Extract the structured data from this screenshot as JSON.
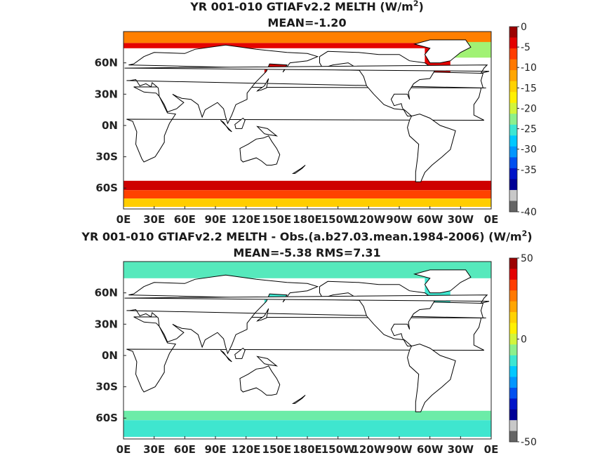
{
  "chart_data": [
    {
      "type": "heatmap",
      "title_prefix": "YR 001-010 GTIAFv2.2  MELTH (W/m",
      "title_exp": "2",
      "title_suffix": ")",
      "subtitle": "MEAN=-1.20",
      "xticks": [
        "0E",
        "30E",
        "60E",
        "90E",
        "120E",
        "150E",
        "180E",
        "150W",
        "120W",
        "90W",
        "60W",
        "30W",
        "0E"
      ],
      "yticks": [
        "60N",
        "30N",
        "0N",
        "30S",
        "60S"
      ],
      "ytick_lat": [
        60,
        30,
        0,
        -30,
        -60
      ],
      "lat_range": [
        -80,
        90
      ],
      "lon_range": [
        0,
        360
      ],
      "colorbar_ticks": [
        0,
        -5,
        -10,
        -15,
        -20,
        -25,
        -30,
        -35,
        -40
      ],
      "colorbar_range": [
        -40,
        0
      ],
      "fields": [
        {
          "lon": [
            0,
            360
          ],
          "lat": [
            -62,
            -53
          ],
          "value": -2
        },
        {
          "lon": [
            0,
            360
          ],
          "lat": [
            -70,
            -62
          ],
          "value": -6
        },
        {
          "lon": [
            0,
            360
          ],
          "lat": [
            -78,
            -70
          ],
          "value": -14
        },
        {
          "lon": [
            0,
            360
          ],
          "lat": [
            79,
            90
          ],
          "value": -9
        },
        {
          "lon": [
            0,
            360
          ],
          "lat": [
            74,
            79
          ],
          "value": -3
        },
        {
          "lon": [
            138,
            160
          ],
          "lat": [
            45,
            62
          ],
          "value": -2
        },
        {
          "lon": [
            295,
            320
          ],
          "lat": [
            45,
            80
          ],
          "value": -3
        },
        {
          "lon": [
            320,
            360
          ],
          "lat": [
            65,
            80
          ],
          "value": -22
        }
      ]
    },
    {
      "type": "heatmap",
      "title_prefix": "YR 001-010 GTIAFv2.2 MELTH - Obs.(a.b27.03.mean.1984-2006) (W/m",
      "title_exp": "2",
      "title_suffix": ")",
      "subtitle": "MEAN=-5.38 RMS=7.31",
      "xticks": [
        "0E",
        "30E",
        "60E",
        "90E",
        "120E",
        "150E",
        "180E",
        "150W",
        "120W",
        "90W",
        "60W",
        "30W",
        "0E"
      ],
      "yticks": [
        "60N",
        "30N",
        "0N",
        "30S",
        "60S"
      ],
      "ytick_lat": [
        60,
        30,
        0,
        -30,
        -60
      ],
      "lat_range": [
        -80,
        90
      ],
      "lon_range": [
        0,
        360
      ],
      "colorbar_ticks": [
        50,
        0,
        -50
      ],
      "colorbar_range": [
        -50,
        50
      ],
      "fields": [
        {
          "lon": [
            0,
            360
          ],
          "lat": [
            -62,
            -53
          ],
          "value": -10
        },
        {
          "lon": [
            0,
            360
          ],
          "lat": [
            -78,
            -62
          ],
          "value": -14
        },
        {
          "lon": [
            0,
            360
          ],
          "lat": [
            74,
            90
          ],
          "value": -12
        },
        {
          "lon": [
            138,
            160
          ],
          "lat": [
            45,
            62
          ],
          "value": -14
        },
        {
          "lon": [
            295,
            320
          ],
          "lat": [
            45,
            80
          ],
          "value": -14
        }
      ]
    }
  ],
  "colors": {
    "background": "#ffffff",
    "land": "#ffffff",
    "coast": "#000000",
    "cmap_melth": [
      "#9c0000",
      "#e30000",
      "#ff3c00",
      "#ff7800",
      "#ffa500",
      "#ffd200",
      "#fff000",
      "#d2f53c",
      "#8cf08c",
      "#3ce6d2",
      "#00c8ff",
      "#0096ff",
      "#0050f0",
      "#0014c8",
      "#000096",
      "#c8c8c8",
      "#646464"
    ],
    "cmap_diff": [
      "#9c0000",
      "#e30000",
      "#ff3c00",
      "#ff7800",
      "#ffa500",
      "#ffd200",
      "#fff000",
      "#d2f53c",
      "#8cf08c",
      "#3ce6d2",
      "#00c8ff",
      "#0096ff",
      "#0050f0",
      "#0014c8",
      "#000096",
      "#c8c8c8",
      "#646464"
    ]
  }
}
